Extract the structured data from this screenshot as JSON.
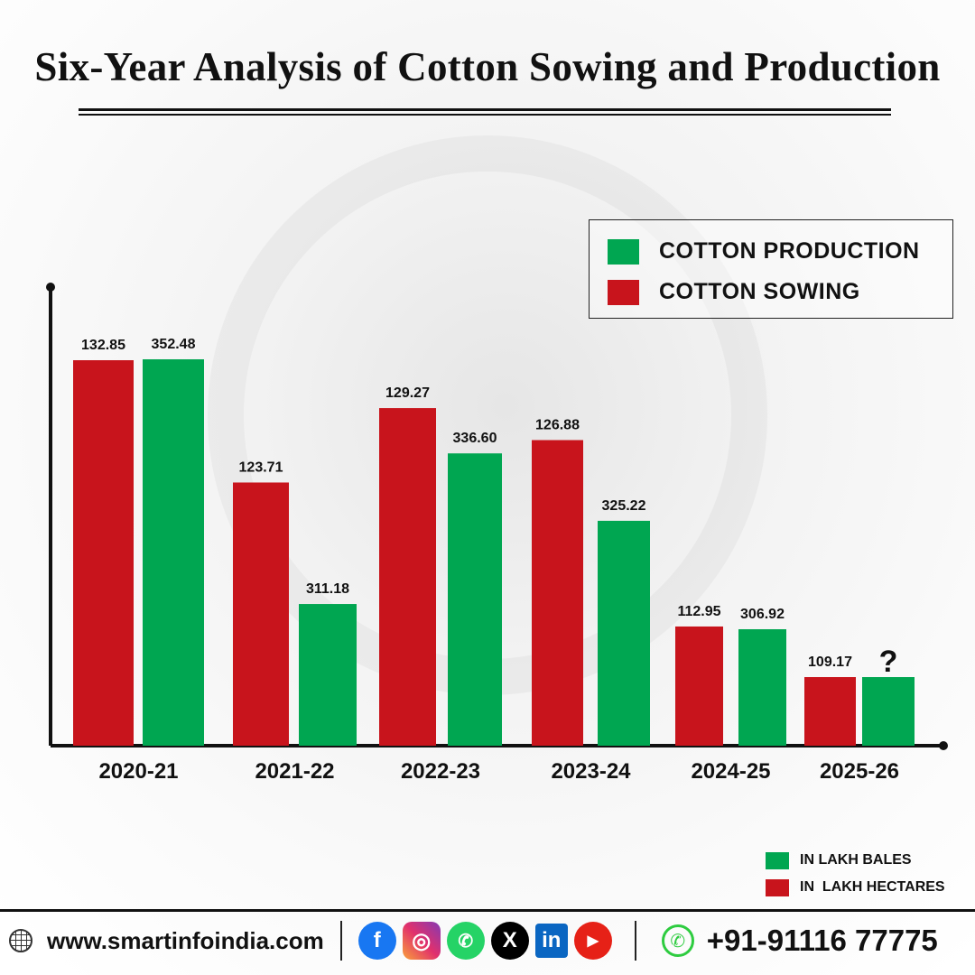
{
  "title": "Six-Year Analysis of Cotton Sowing and Production",
  "legend": {
    "production": "COTTON PRODUCTION",
    "sowing": "COTTON SOWING"
  },
  "units": {
    "production": "IN LAKH BALES",
    "sowing": "IN  LAKH HECTARES"
  },
  "colors": {
    "production": "#00a651",
    "sowing": "#c8141c"
  },
  "chart_data": {
    "type": "bar",
    "title": "Six-Year Analysis of Cotton Sowing and Production",
    "categories": [
      "2020-21",
      "2021-22",
      "2022-23",
      "2023-24",
      "2024-25",
      "2025-26"
    ],
    "series": [
      {
        "name": "COTTON SOWING",
        "unit": "IN  LAKH HECTARES",
        "values": [
          132.85,
          123.71,
          129.27,
          126.88,
          112.95,
          109.17
        ]
      },
      {
        "name": "COTTON PRODUCTION",
        "unit": "IN LAKH BALES",
        "values": [
          352.48,
          311.18,
          336.6,
          325.22,
          306.92,
          null
        ]
      }
    ],
    "unknown_label": "?",
    "grid": false,
    "legend_position": "top-right"
  },
  "footer": {
    "website": "www.smartinfoindia.com",
    "phone": "+91-91116 77775",
    "social_icons": [
      "facebook-icon",
      "instagram-icon",
      "whatsapp-icon",
      "x-icon",
      "linkedin-icon",
      "youtube-icon"
    ]
  }
}
